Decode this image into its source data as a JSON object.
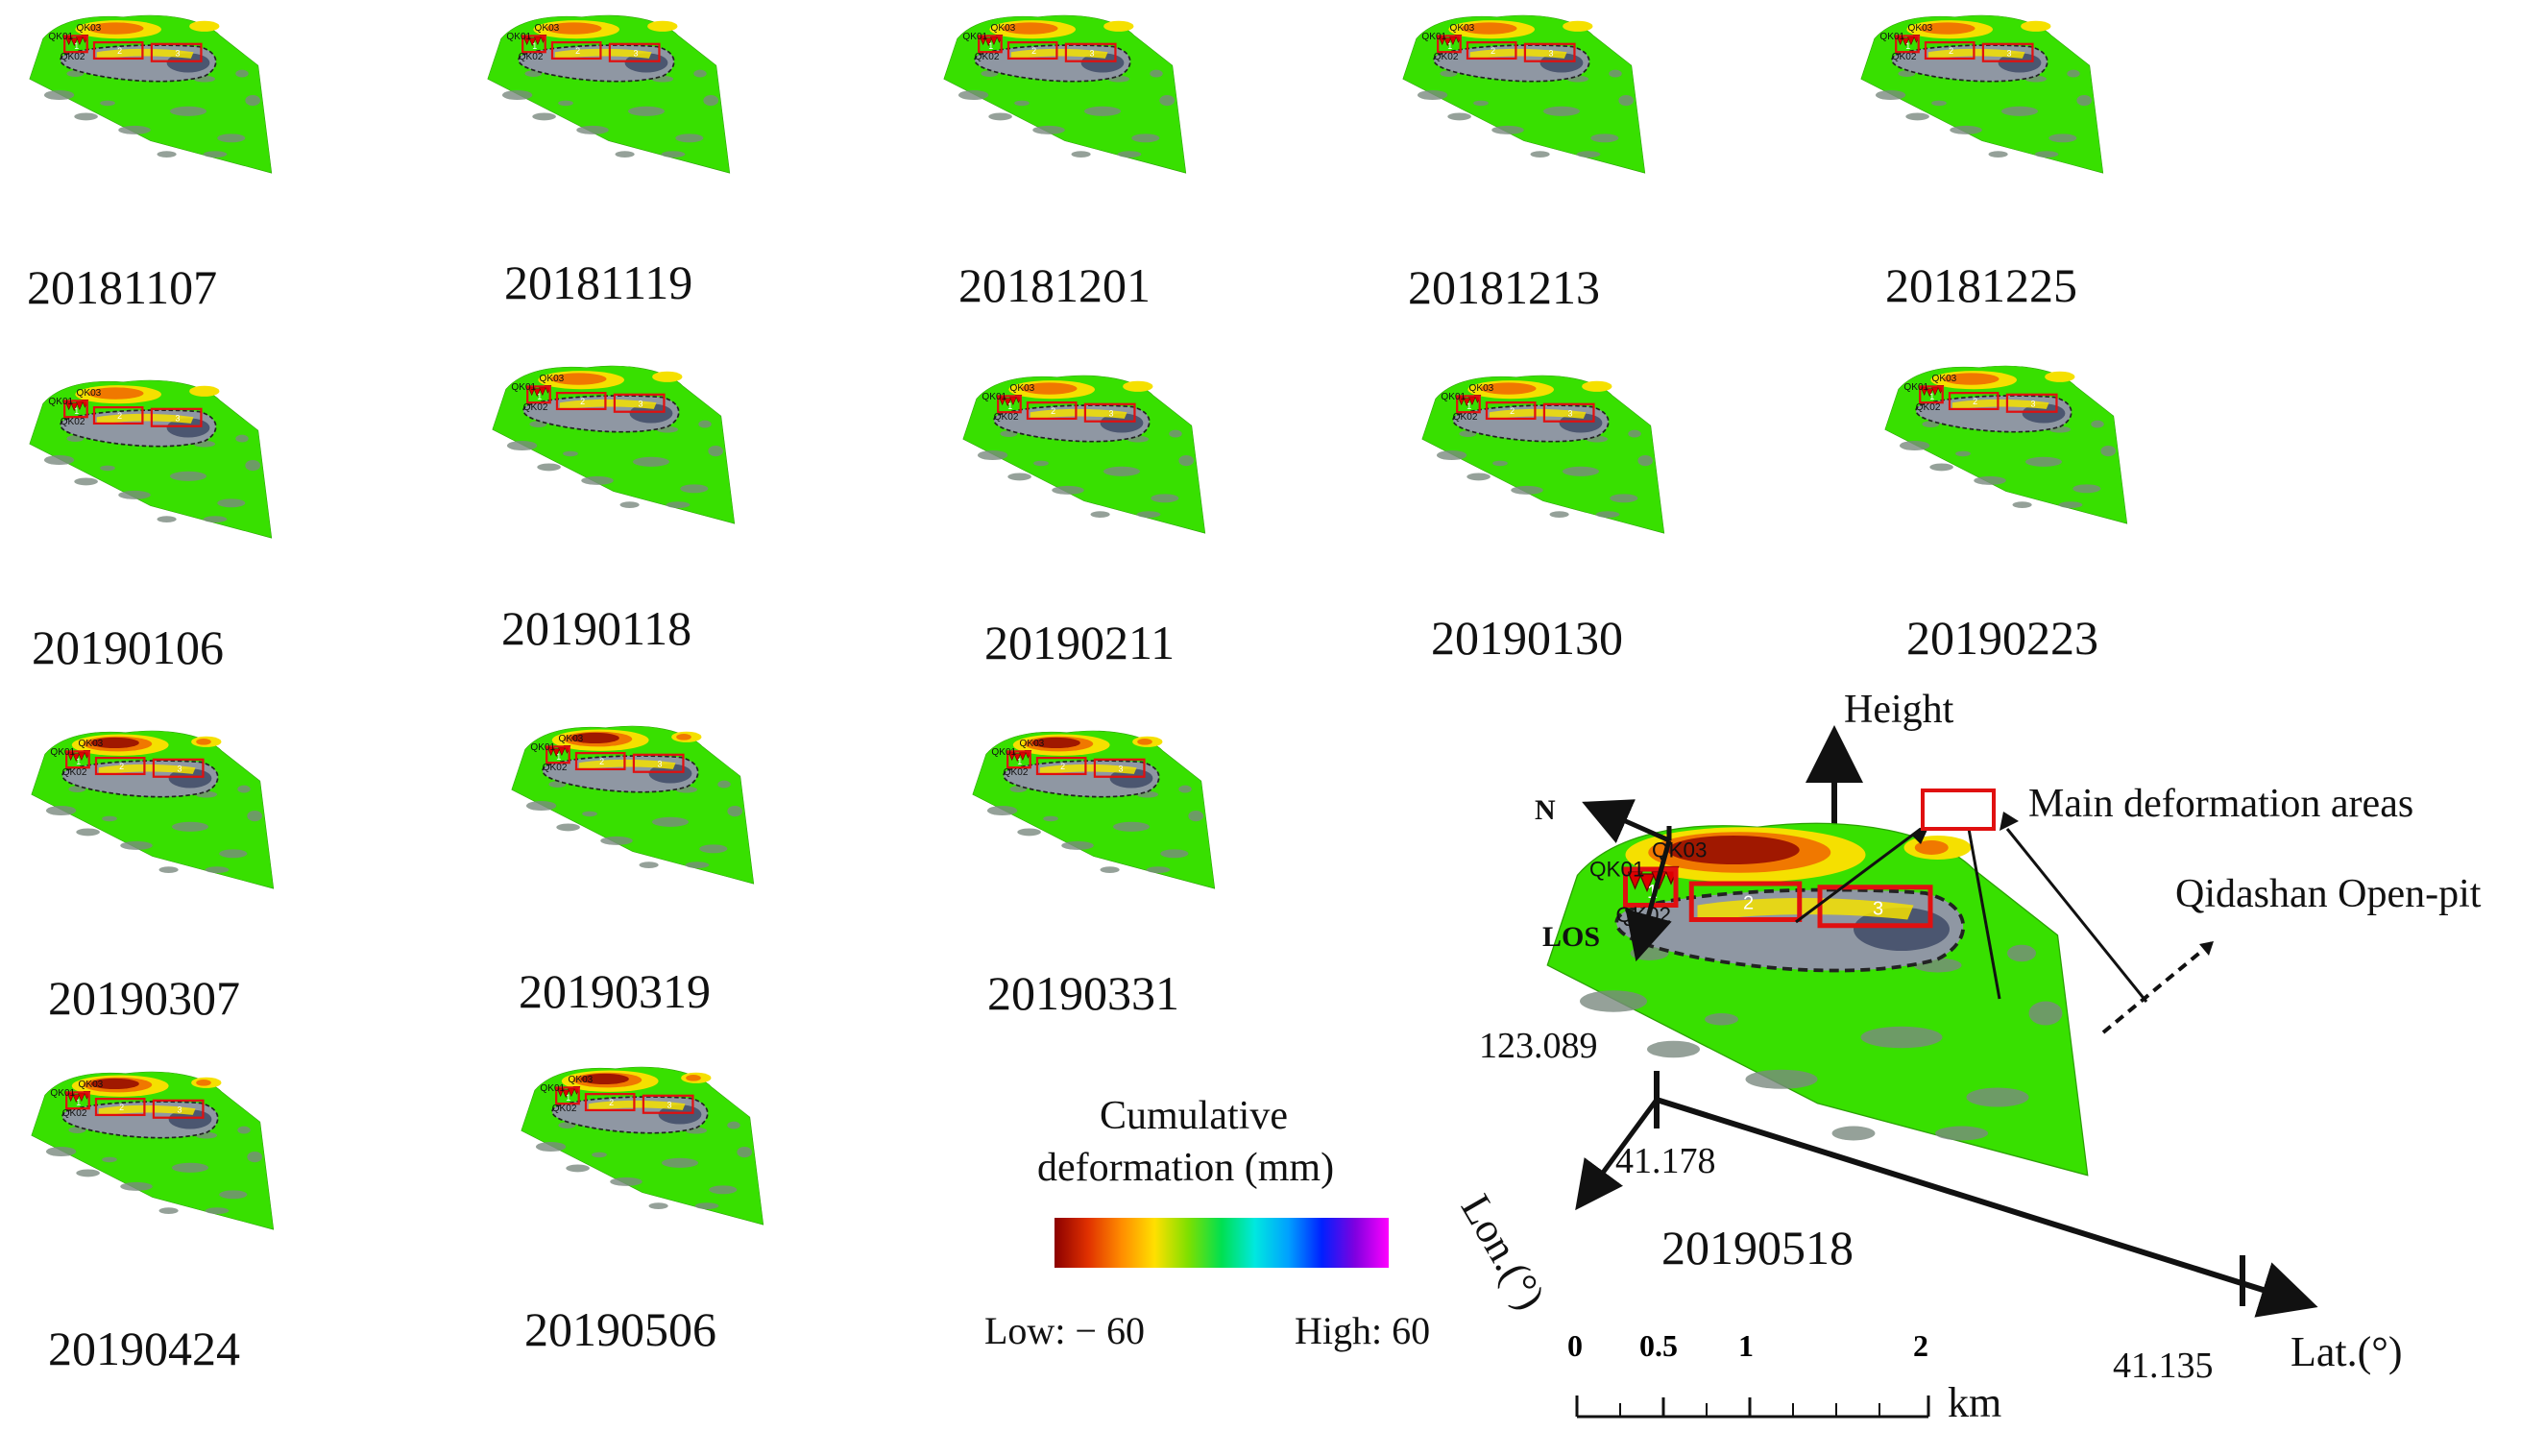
{
  "colors": {
    "background": "#ffffff",
    "stable_green": "#38e000",
    "pit_gray": "#8f97a3",
    "frame_red": "#e01010",
    "deform_dark_red": "#a01800",
    "deform_orange": "#f07800",
    "deform_yellow": "#f5e000"
  },
  "labels": {
    "qk01": "QK01",
    "qk02": "QK02",
    "qk03": "QK03",
    "area_1": "1",
    "area_2": "2",
    "area_3": "3"
  },
  "panels": [
    {
      "date": "20181107"
    },
    {
      "date": "20181119"
    },
    {
      "date": "20181201"
    },
    {
      "date": "20181213"
    },
    {
      "date": "20181225"
    },
    {
      "date": "20190106"
    },
    {
      "date": "20190118"
    },
    {
      "date": "20190211"
    },
    {
      "date": "20190130"
    },
    {
      "date": "20190223"
    },
    {
      "date": "20190307"
    },
    {
      "date": "20190319"
    },
    {
      "date": "20190331"
    },
    {
      "date": "20190424"
    },
    {
      "date": "20190506"
    }
  ],
  "legend": {
    "title_line1": "Cumulative",
    "title_line2": "deformation (mm)",
    "low": "Low: − 60",
    "high": "High: 60",
    "gradient": [
      "#8b0000",
      "#e03000",
      "#ff8c00",
      "#ffe000",
      "#7ee000",
      "#00e050",
      "#00e8e0",
      "#00a0ff",
      "#0020ff",
      "#8000e0",
      "#ff00ff"
    ]
  },
  "overview": {
    "date": "20190518",
    "height_label": "Height",
    "main_areas_label": "Main deformation areas",
    "pit_label": "Qidashan Open-pit",
    "north_label": "N",
    "los_label": "LOS",
    "lon_value": "123.089",
    "lat_start": "41.178",
    "lat_end": "41.135",
    "lon_axis": "Lon.(°)",
    "lat_axis": "Lat.(°)"
  },
  "scale_bar": {
    "ticks": [
      "0",
      "0.5",
      "1",
      "2"
    ],
    "unit": "km"
  }
}
